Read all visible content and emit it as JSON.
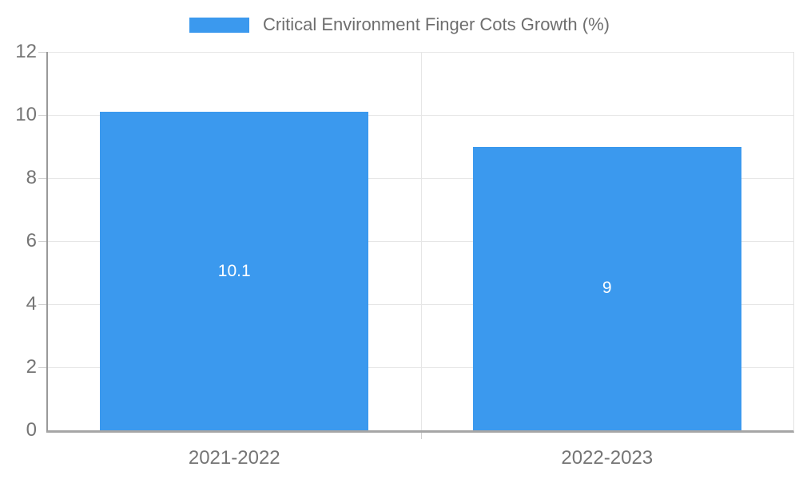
{
  "chart_data": {
    "type": "bar",
    "title": "Critical Environment Finger Cots Growth (%)",
    "legend": [
      "Critical Environment Finger Cots Growth (%)"
    ],
    "legend_position": "top-center",
    "categories": [
      "2021-2022",
      "2022-2023"
    ],
    "series": [
      {
        "name": "Critical Environment Finger Cots Growth (%)",
        "values": [
          10.1,
          9
        ]
      }
    ],
    "value_labels": [
      "10.1",
      "9"
    ],
    "xlabel": "",
    "ylabel": "",
    "ylim": [
      0,
      12
    ],
    "yticks": [
      0,
      2,
      4,
      6,
      8,
      10,
      12
    ],
    "grid": true,
    "colors": {
      "bar": "#3B99EE",
      "grid": "#e6e6e6",
      "axis_line": "#999999",
      "baseline": "#a6a6a6",
      "tick": "#d0d0d0",
      "axis_text": "#757575",
      "legend_text": "#6e6e6e",
      "value_label_text": "#ffffff",
      "background": "#ffffff"
    }
  }
}
